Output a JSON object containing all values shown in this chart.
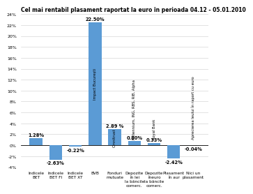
{
  "title": "Cel mai rentabil plasament raportat la euro în perioada 04.12 - 05.01.2010",
  "categories": [
    "Indicele\nBET",
    "Indicele\nBET FI",
    "Indicele\nBET XT",
    "BVB",
    "Fonduri\nmutuate",
    "Depozite\nîn lei\nla băncile\ncomerc.",
    "Depozite\nîneuro\nla băncile\ncomerc.",
    "Plasament\nîn aur",
    "Nici un\nplasament"
  ],
  "values": [
    1.28,
    -2.63,
    -0.22,
    22.5,
    2.89,
    0.8,
    0.33,
    -2.42,
    -0.04
  ],
  "bar_labels": [
    "1.28%",
    "-2.63%",
    "-0.22%",
    "22.50%",
    "2.89 %",
    "0.80%",
    "0.33%",
    "-2.42%",
    "-0.04%"
  ],
  "rotated_labels": [
    "Impact București",
    "Omnitrust",
    "Millennium, ING, RBS, RIB, Alpha",
    "Royal Bank",
    "Aprecierea leului în raport cu euro"
  ],
  "rotated_positions": [
    3,
    4,
    5,
    6,
    8
  ],
  "bar_color": "#5b9bd5",
  "ylim": [
    -4,
    24
  ],
  "ytick_vals": [
    -4,
    -2,
    0,
    2,
    4,
    6,
    8,
    10,
    12,
    14,
    16,
    18,
    20,
    22,
    24
  ],
  "ytick_labels": [
    "-4%",
    "-2%",
    "0%",
    "2%",
    "4%",
    "6%",
    "8%",
    "10%",
    "12%",
    "14%",
    "16%",
    "18%",
    "20%",
    "22%",
    "24%"
  ],
  "title_fontsize": 5.5,
  "xlabel_fontsize": 4.2,
  "ylabel_fontsize": 4.5,
  "value_fontsize": 4.8,
  "rotated_fontsize": 3.8,
  "bg_color": "#ffffff",
  "grid_color": "#cccccc"
}
